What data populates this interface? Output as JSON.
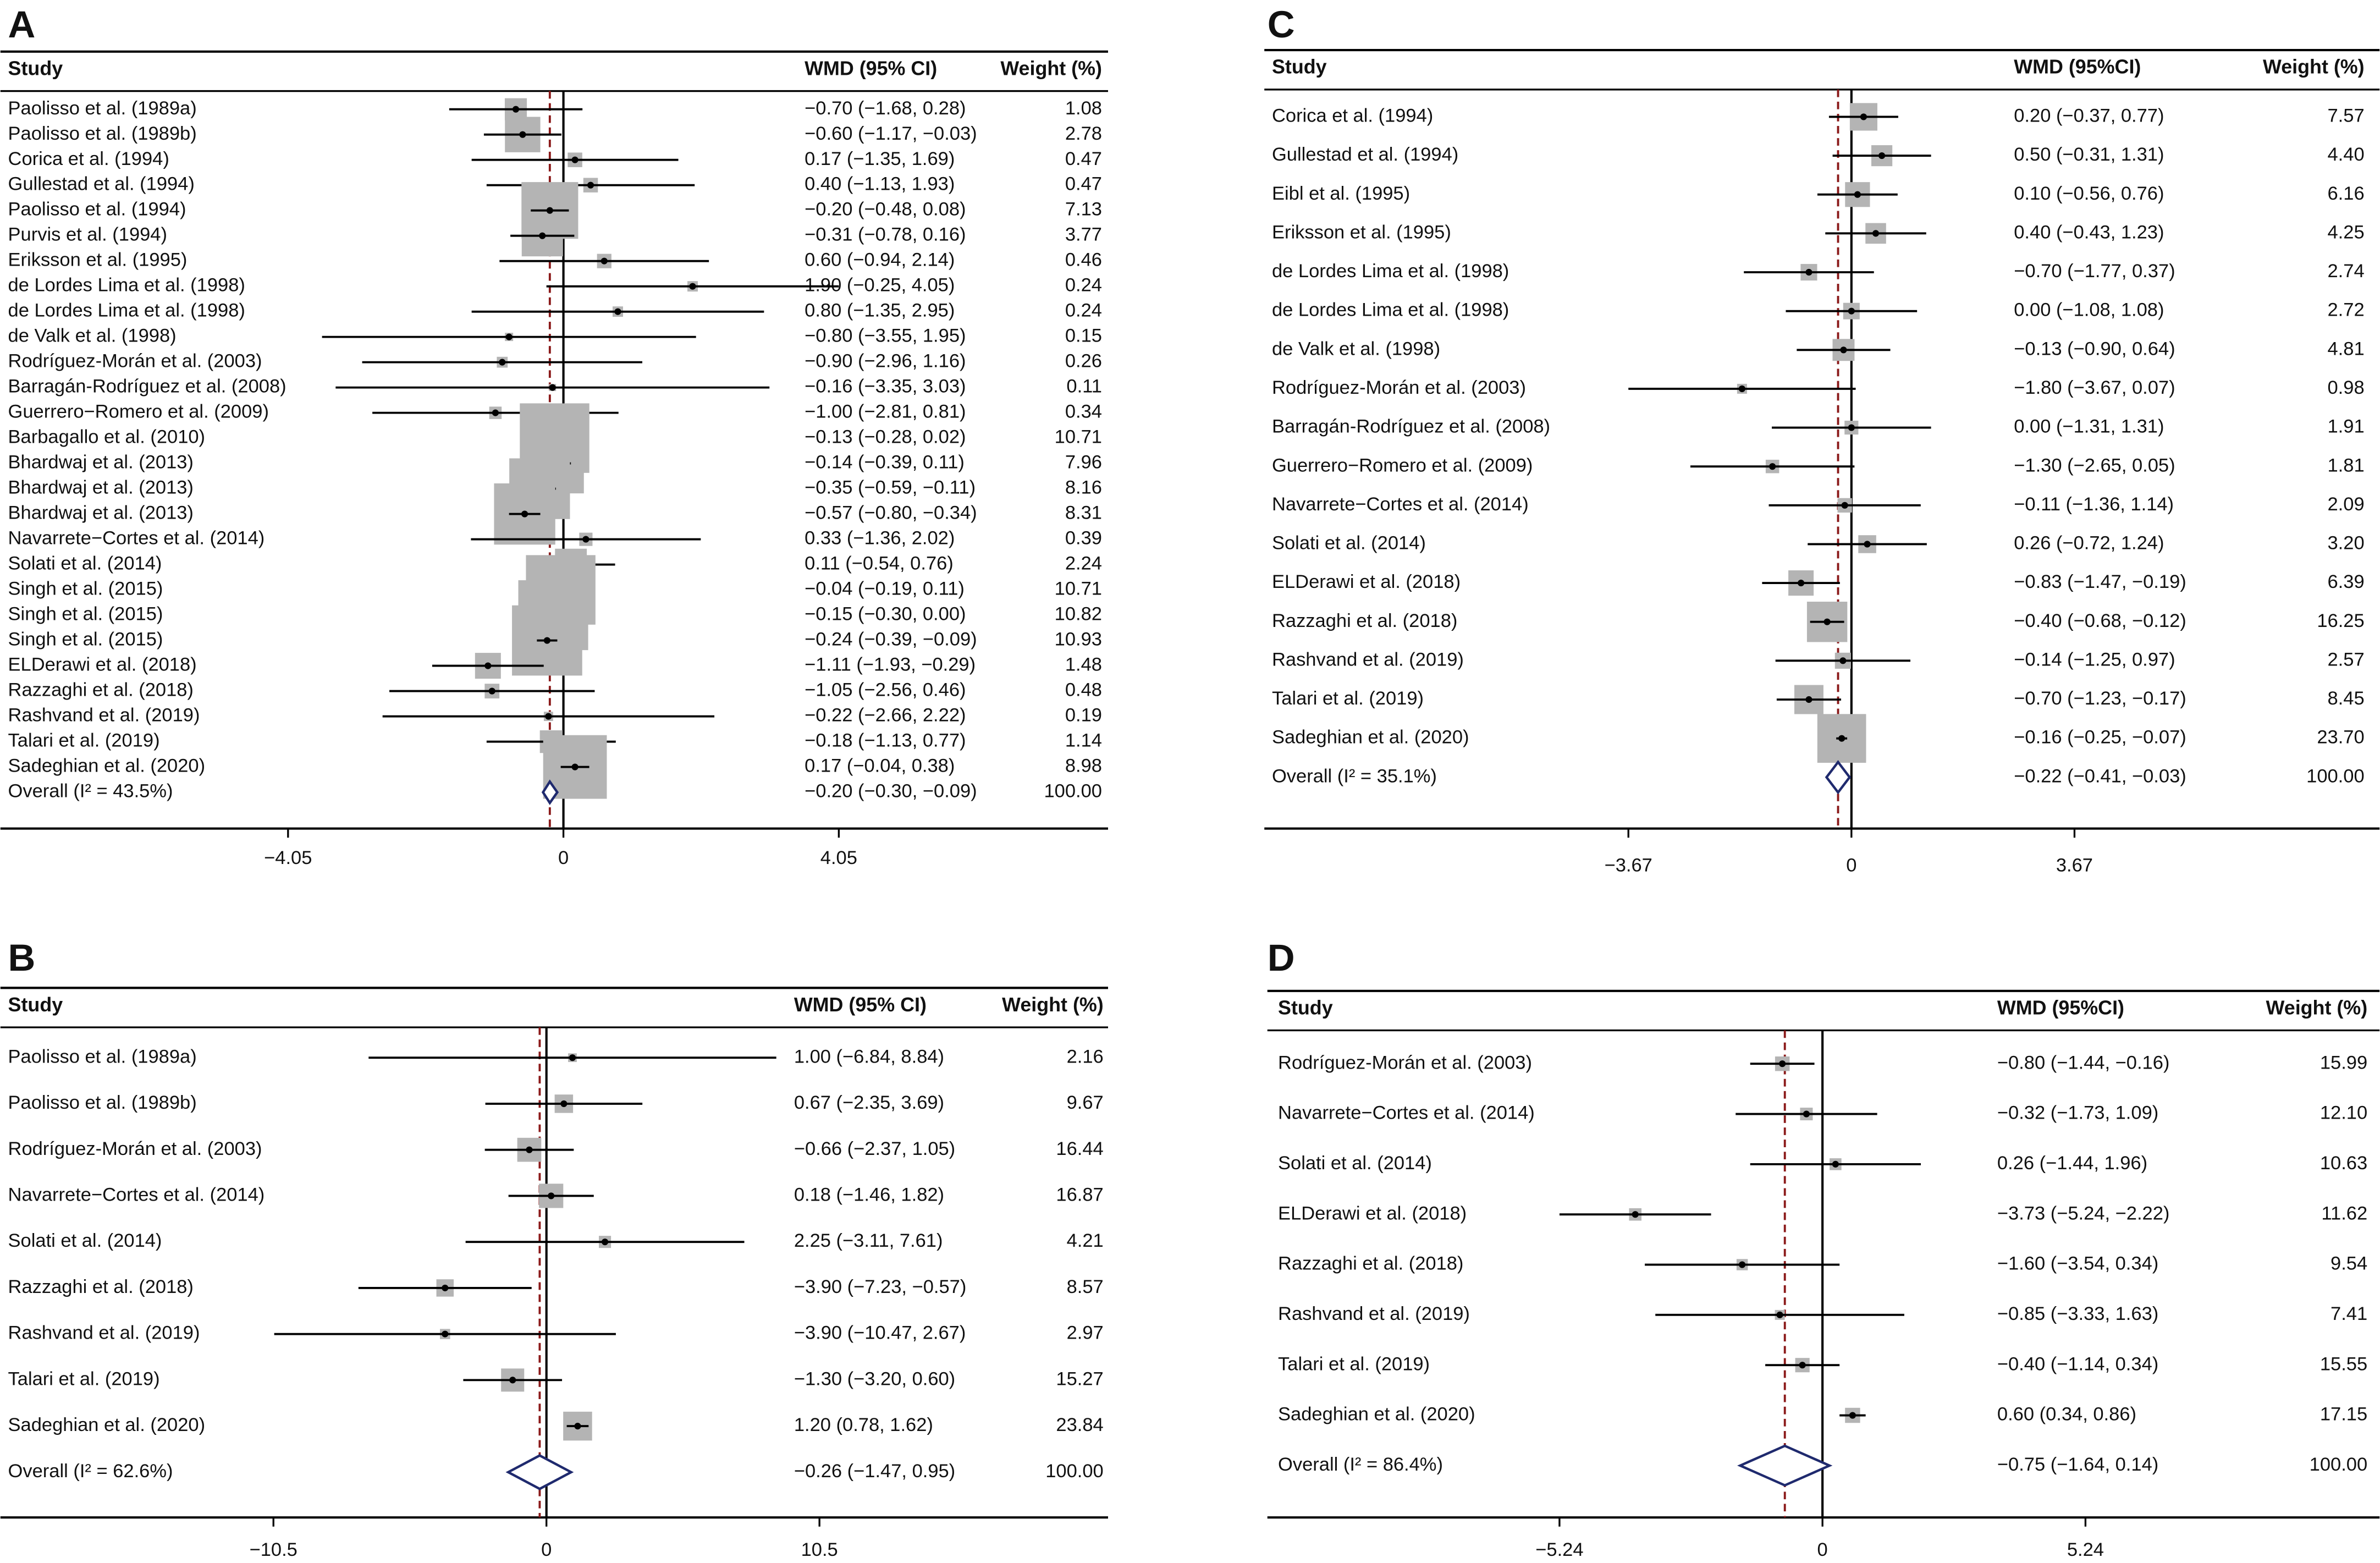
{
  "chart_data": [
    {
      "type": "forest",
      "label": "A",
      "headers": {
        "study": "Study",
        "estimate": "WMD (95% CI)",
        "weight": "Weight (%)"
      },
      "studies": [
        "Paolisso et al. (1989a)",
        "Paolisso et al. (1989b)",
        "Corica et al. (1994)",
        "Gullestad et al. (1994)",
        "Paolisso et al. (1994)",
        "Purvis et al. (1994)",
        "Eriksson et al. (1995)",
        "de Lordes Lima et al. (1998)",
        "de Lordes Lima et al. (1998)",
        "de Valk et al. (1998)",
        "Rodríguez-Morán et al. (2003)",
        "Barragán-Rodríguez et al. (2008)",
        "Guerrero−Romero et al. (2009)",
        "Barbagallo et al. (2010)",
        "Bhardwaj et al. (2013)",
        "Bhardwaj et al. (2013)",
        "Bhardwaj et al. (2013)",
        "Navarrete−Cortes et al. (2014)",
        "Solati et al. (2014)",
        "Singh et al. (2015)",
        "Singh et al. (2015)",
        "Singh et al. (2015)",
        "ELDerawi et al. (2018)",
        "Razzaghi et al. (2018)",
        "Rashvand et al. (2019)",
        "Talari et al. (2019)",
        "Sadeghian et al. (2020)"
      ],
      "values": [
        -0.7,
        -0.6,
        0.17,
        0.4,
        -0.2,
        -0.31,
        0.6,
        1.9,
        0.8,
        -0.8,
        -0.9,
        -0.16,
        -1.0,
        -0.13,
        -0.14,
        -0.35,
        -0.57,
        0.33,
        0.11,
        -0.04,
        -0.15,
        -0.24,
        -1.11,
        -1.05,
        -0.22,
        -0.18,
        0.17
      ],
      "lower": [
        -1.68,
        -1.17,
        -1.35,
        -1.13,
        -0.48,
        -0.78,
        -0.94,
        -0.25,
        -1.35,
        -3.55,
        -2.96,
        -3.35,
        -2.81,
        -0.28,
        -0.39,
        -0.59,
        -0.8,
        -1.36,
        -0.54,
        -0.19,
        -0.3,
        -0.39,
        -1.93,
        -2.56,
        -2.66,
        -1.13,
        -0.04
      ],
      "upper": [
        0.28,
        -0.03,
        1.69,
        1.93,
        0.08,
        0.16,
        2.14,
        4.05,
        2.95,
        1.95,
        1.16,
        3.03,
        0.81,
        0.02,
        0.11,
        -0.11,
        -0.34,
        2.02,
        0.76,
        0.11,
        0.0,
        -0.09,
        -0.29,
        0.46,
        2.22,
        0.77,
        0.38
      ],
      "value_labels": [
        "−0.70 (−1.68, 0.28)",
        "−0.60 (−1.17, −0.03)",
        "0.17 (−1.35, 1.69)",
        "0.40 (−1.13, 1.93)",
        "−0.20 (−0.48, 0.08)",
        "−0.31 (−0.78, 0.16)",
        "0.60 (−0.94, 2.14)",
        "1.90 (−0.25, 4.05)",
        "0.80 (−1.35, 2.95)",
        "−0.80 (−3.55, 1.95)",
        "−0.90 (−2.96, 1.16)",
        "−0.16 (−3.35, 3.03)",
        "−1.00 (−2.81, 0.81)",
        "−0.13 (−0.28, 0.02)",
        "−0.14 (−0.39, 0.11)",
        "−0.35 (−0.59, −0.11)",
        "−0.57 (−0.80, −0.34)",
        "0.33 (−1.36, 2.02)",
        "0.11 (−0.54, 0.76)",
        "−0.04 (−0.19, 0.11)",
        "−0.15 (−0.30, 0.00)",
        "−0.24 (−0.39, −0.09)",
        "−1.11 (−1.93, −0.29)",
        "−1.05 (−2.56, 0.46)",
        "−0.22 (−2.66, 2.22)",
        "−0.18 (−1.13, 0.77)",
        "0.17 (−0.04, 0.38)"
      ],
      "weights": [
        1.08,
        2.78,
        0.47,
        0.47,
        7.13,
        3.77,
        0.46,
        0.24,
        0.24,
        0.15,
        0.26,
        0.11,
        0.34,
        10.71,
        7.96,
        8.16,
        8.31,
        0.39,
        2.24,
        10.71,
        10.82,
        10.93,
        1.48,
        0.48,
        0.19,
        1.14,
        8.98
      ],
      "weight_labels": [
        "1.08",
        "2.78",
        "0.47",
        "0.47",
        "7.13",
        "3.77",
        "0.46",
        "0.24",
        "0.24",
        "0.15",
        "0.26",
        "0.11",
        "0.34",
        "10.71",
        "7.96",
        "8.16",
        "8.31",
        "0.39",
        "2.24",
        "10.71",
        "10.82",
        "10.93",
        "1.48",
        "0.48",
        "0.19",
        "1.14",
        "8.98"
      ],
      "overall": {
        "label": "Overall  (I² = 43.5%)",
        "value": -0.2,
        "lower": -0.3,
        "upper": -0.09,
        "value_label": "−0.20 (−0.30, −0.09)",
        "weight": 100,
        "weight_label": "100.00"
      },
      "xlim": [
        -8.28,
        8.01
      ],
      "xticks": [
        {
          "value": -4.05,
          "label": "−4.05"
        },
        0,
        4.05
      ],
      "square_color": "#b4b4b4",
      "diamond_color": "#1f2a6e",
      "reference_color": "#8b1a1a"
    },
    {
      "type": "forest",
      "label": "B",
      "headers": {
        "study": "Study",
        "estimate": "WMD (95% CI)",
        "weight": "Weight (%)"
      },
      "studies": [
        "Paolisso et al. (1989a)",
        "Paolisso et al. (1989b)",
        "Rodríguez-Morán et al. (2003)",
        "Navarrete−Cortes et al. (2014)",
        "Solati et al. (2014)",
        "Razzaghi et al. (2018)",
        "Rashvand et al. (2019)",
        "Talari et al. (2019)",
        "Sadeghian et al. (2020)"
      ],
      "values": [
        1.0,
        0.67,
        -0.66,
        0.18,
        2.25,
        -3.9,
        -3.9,
        -1.3,
        1.2
      ],
      "lower": [
        -6.84,
        -2.35,
        -2.37,
        -1.46,
        -3.11,
        -7.23,
        -10.47,
        -3.2,
        0.78
      ],
      "upper": [
        8.84,
        3.69,
        1.05,
        1.82,
        7.61,
        -0.57,
        2.67,
        0.6,
        1.62
      ],
      "value_labels": [
        "1.00 (−6.84, 8.84)",
        "0.67 (−2.35, 3.69)",
        "−0.66 (−2.37, 1.05)",
        "0.18 (−1.46, 1.82)",
        "2.25 (−3.11, 7.61)",
        "−3.90 (−7.23, −0.57)",
        "−3.90 (−10.47, 2.67)",
        "−1.30 (−3.20, 0.60)",
        "1.20 (0.78, 1.62)"
      ],
      "weights": [
        2.16,
        9.67,
        16.44,
        16.87,
        4.21,
        8.57,
        2.97,
        15.27,
        23.84
      ],
      "weight_labels": [
        "2.16",
        "9.67",
        "16.44",
        "16.87",
        "4.21",
        "8.57",
        "2.97",
        "15.27",
        "23.84"
      ],
      "overall": {
        "label": "Overall  (I² = 62.6%)",
        "value": -0.26,
        "lower": -1.47,
        "upper": 0.95,
        "value_label": "−0.26 (−1.47, 0.95)",
        "weight": 100,
        "weight_label": "100.00"
      },
      "xlim": [
        -21.0,
        21.6
      ],
      "xticks": [
        {
          "value": -10.5,
          "label": "−10.5"
        },
        0,
        10.5
      ],
      "square_color": "#b4b4b4",
      "diamond_color": "#1f2a6e",
      "reference_color": "#8b1a1a"
    },
    {
      "type": "forest",
      "label": "C",
      "headers": {
        "study": "Study",
        "estimate": "WMD (95%CI)",
        "weight": "Weight (%)"
      },
      "studies": [
        "Corica et al. (1994)",
        "Gullestad et al. (1994)",
        "Eibl et al. (1995)",
        "Eriksson et al. (1995)",
        "de Lordes Lima et al. (1998)",
        "de Lordes Lima et al. (1998)",
        "de Valk et al. (1998)",
        "Rodríguez-Morán et al. (2003)",
        "Barragán-Rodríguez et al. (2008)",
        "Guerrero−Romero et al. (2009)",
        "Navarrete−Cortes et al. (2014)",
        "Solati et al. (2014)",
        "ELDerawi et al. (2018)",
        "Razzaghi et al. (2018)",
        "Rashvand et al. (2019)",
        "Talari et al. (2019)",
        "Sadeghian et al. (2020)"
      ],
      "values": [
        0.2,
        0.5,
        0.1,
        0.4,
        -0.7,
        0.0,
        -0.13,
        -1.8,
        0.0,
        -1.3,
        -0.11,
        0.26,
        -0.83,
        -0.4,
        -0.14,
        -0.7,
        -0.16
      ],
      "lower": [
        -0.37,
        -0.31,
        -0.56,
        -0.43,
        -1.77,
        -1.08,
        -0.9,
        -3.67,
        -1.31,
        -2.65,
        -1.36,
        -0.72,
        -1.47,
        -0.68,
        -1.25,
        -1.23,
        -0.25
      ],
      "upper": [
        0.77,
        1.31,
        0.76,
        1.23,
        0.37,
        1.08,
        0.64,
        0.07,
        1.31,
        0.05,
        1.14,
        1.24,
        -0.19,
        -0.12,
        0.97,
        -0.17,
        -0.07
      ],
      "value_labels": [
        "0.20 (−0.37, 0.77)",
        "0.50 (−0.31, 1.31)",
        "0.10 (−0.56, 0.76)",
        "0.40 (−0.43, 1.23)",
        "−0.70 (−1.77, 0.37)",
        "0.00 (−1.08, 1.08)",
        "−0.13 (−0.90, 0.64)",
        "−1.80 (−3.67, 0.07)",
        "0.00 (−1.31, 1.31)",
        "−1.30 (−2.65, 0.05)",
        "−0.11 (−1.36, 1.14)",
        "0.26 (−0.72, 1.24)",
        "−0.83 (−1.47, −0.19)",
        "−0.40 (−0.68, −0.12)",
        "−0.14 (−1.25, 0.97)",
        "−0.70 (−1.23, −0.17)",
        "−0.16 (−0.25, −0.07)"
      ],
      "weights": [
        7.57,
        4.4,
        6.16,
        4.25,
        2.74,
        2.72,
        4.81,
        0.98,
        1.91,
        1.81,
        2.09,
        3.2,
        6.39,
        16.25,
        2.57,
        8.45,
        23.7
      ],
      "weight_labels": [
        "7.57",
        "4.40",
        "6.16",
        "4.25",
        "2.74",
        "2.72",
        "4.81",
        "0.98",
        "1.91",
        "1.81",
        "2.09",
        "3.20",
        "6.39",
        "16.25",
        "2.57",
        "8.45",
        "23.70"
      ],
      "overall": {
        "label": "Overall  (I² = 35.1%)",
        "value": -0.22,
        "lower": -0.41,
        "upper": -0.03,
        "value_label": "−0.22 (−0.41, −0.03)",
        "weight": 100,
        "weight_label": "100.00"
      },
      "xlim": [
        -9.66,
        8.69
      ],
      "xticks": [
        {
          "value": -3.67,
          "label": "−3.67"
        },
        0,
        3.67
      ],
      "square_color": "#b4b4b4",
      "diamond_color": "#1f2a6e",
      "reference_color": "#8b1a1a"
    },
    {
      "type": "forest",
      "label": "D",
      "headers": {
        "study": "Study",
        "estimate": "WMD (95%CI)",
        "weight": "Weight (%)"
      },
      "studies": [
        "Rodríguez-Morán et al. (2003)",
        "Navarrete−Cortes et al. (2014)",
        "Solati et al. (2014)",
        "ELDerawi et al. (2018)",
        "Razzaghi et al. (2018)",
        "Rashvand et al. (2019)",
        "Talari et al. (2019)",
        "Sadeghian et al. (2020)"
      ],
      "values": [
        -0.8,
        -0.32,
        0.26,
        -3.73,
        -1.6,
        -0.85,
        -0.4,
        0.6
      ],
      "lower": [
        -1.44,
        -1.73,
        -1.44,
        -5.24,
        -3.54,
        -3.33,
        -1.14,
        0.34
      ],
      "upper": [
        -0.16,
        1.09,
        1.96,
        -2.22,
        0.34,
        1.63,
        0.34,
        0.86
      ],
      "value_labels": [
        "−0.80 (−1.44, −0.16)",
        "−0.32 (−1.73, 1.09)",
        "0.26 (−1.44, 1.96)",
        "−3.73 (−5.24, −2.22)",
        "−1.60 (−3.54, 0.34)",
        "−0.85 (−3.33, 1.63)",
        "−0.40 (−1.14, 0.34)",
        "0.60 (0.34, 0.86)"
      ],
      "weights": [
        15.99,
        12.1,
        10.63,
        11.62,
        9.54,
        7.41,
        15.55,
        17.15
      ],
      "weight_labels": [
        "15.99",
        "12.10",
        "10.63",
        "11.62",
        "9.54",
        "7.41",
        "15.55",
        "17.15"
      ],
      "overall": {
        "label": "Overall  (I² = 86.4%)",
        "value": -0.75,
        "lower": -1.64,
        "upper": 0.14,
        "value_label": "−0.75 (−1.64, 0.14)",
        "weight": 100,
        "weight_label": "100.00"
      },
      "xlim": [
        -11.06,
        11.1
      ],
      "xticks": [
        {
          "value": -5.24,
          "label": "−5.24"
        },
        0,
        5.24
      ],
      "square_color": "#b4b4b4",
      "diamond_color": "#1f2a6e",
      "reference_color": "#8b1a1a"
    }
  ]
}
